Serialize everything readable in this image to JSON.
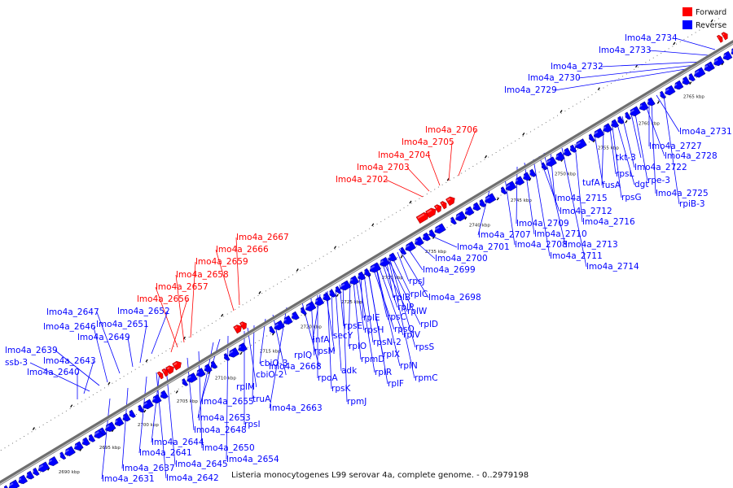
{
  "legend": {
    "forward": {
      "label": "Forward",
      "color": "#ff0000"
    },
    "reverse": {
      "label": "Reverse",
      "color": "#0000ff"
    }
  },
  "caption": "Listeria monocytogenes L99 serovar 4a, complete genome. - 0..2979198",
  "ticks": [
    "2690 kbp",
    "2695 kbp",
    "2700 kbp",
    "2705 kbp",
    "2710 kbp",
    "2715 kbp",
    "2720 kbp",
    "2725 kbp",
    "2730 kbp",
    "2735 kbp",
    "2740 kbp",
    "2745 kbp",
    "2750 kbp",
    "2755 kbp",
    "2760 kbp",
    "2765 kbp"
  ],
  "forward_labels": [
    "lmo4a_2656",
    "lmo4a_2657",
    "lmo4a_2658",
    "lmo4a_2659",
    "lmo4a_2666",
    "lmo4a_2667",
    "lmo4a_2702",
    "lmo4a_2703",
    "lmo4a_2704",
    "lmo4a_2705",
    "lmo4a_2706"
  ],
  "reverse_labels": [
    "lmo4a_2734",
    "lmo4a_2733",
    "lmo4a_2732",
    "lmo4a_2730",
    "lmo4a_2729",
    "lmo4a_2731",
    "lmo4a_2727",
    "lmo4a_2728",
    "tkt-3",
    "lmo4a_2722",
    "rpe-3",
    "lmo4a_2725",
    "rpiB-3",
    "rpsL",
    "dgt",
    "tufA",
    "fusA",
    "rpsG",
    "lmo4a_2715",
    "lmo4a_2712",
    "lmo4a_2716",
    "lmo4a_2709",
    "lmo4a_2707",
    "lmo4a_2710",
    "lmo4a_2708",
    "lmo4a_2713",
    "lmo4a_2711",
    "lmo4a_2714",
    "lmo4a_2701",
    "lmo4a_2700",
    "lmo4a_2699",
    "rpsJ",
    "rplC",
    "lmo4a_2698",
    "rplB",
    "rplP",
    "rplW",
    "rpsC",
    "rplD",
    "rplE",
    "rpsQ",
    "rplV",
    "rpsE",
    "rpsH",
    "rpsN-2",
    "rpsS",
    "secY",
    "rplO",
    "rplX",
    "infA",
    "rpsM",
    "rpmD",
    "rplN",
    "rplQ",
    "adk",
    "rplR",
    "rpmC",
    "lmo4a_2668",
    "rpoA",
    "rplF",
    "rpsK",
    "rpmJ",
    "cbiO-3",
    "cbiO-2",
    "lmo4a_2663",
    "rplM",
    "truA",
    "lmo4a_2655",
    "lmo4a_2653",
    "rpsI",
    "lmo4a_2648",
    "lmo4a_2644",
    "lmo4a_2650",
    "lmo4a_2654",
    "lmo4a_2641",
    "lmo4a_2645",
    "lmo4a_2637",
    "lmo4a_2642",
    "lmo4a_2631",
    "lmo4a_2652",
    "lmo4a_2651",
    "lmo4a_2649",
    "lmo4a_2647",
    "lmo4a_2646",
    "lmo4a_2639",
    "ssb-3",
    "lmo4a_2643",
    "lmo4a_2640"
  ]
}
